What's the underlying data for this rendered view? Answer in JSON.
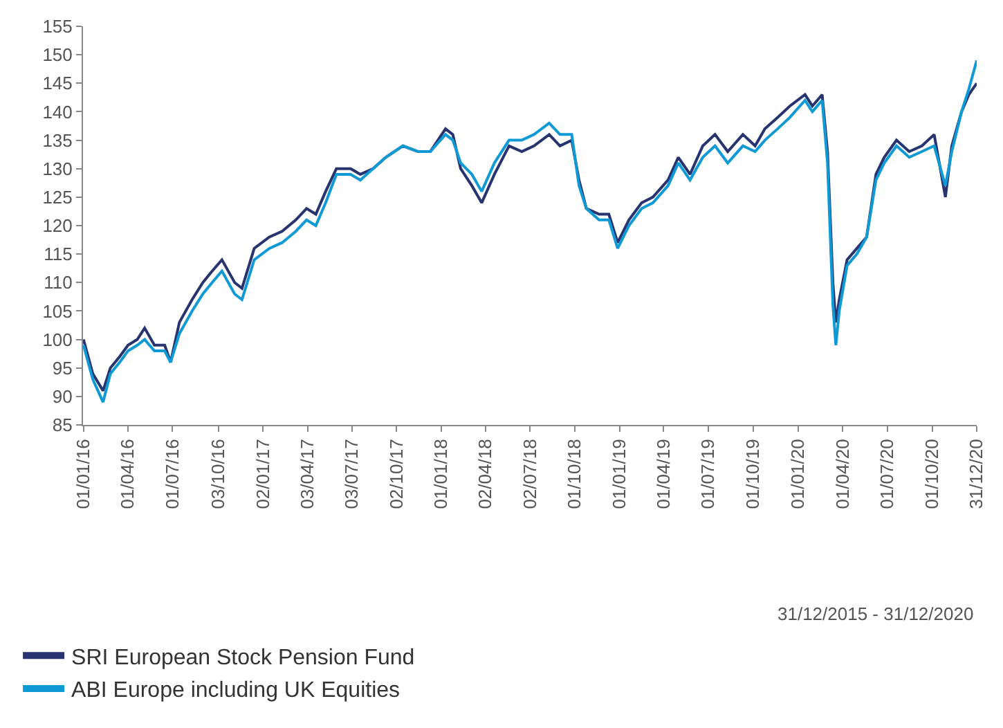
{
  "chart_data": {
    "type": "line",
    "annotations": [
      "31/12/2015 - 31/12/2020"
    ],
    "xlim": [
      "2015-12-31",
      "2020-12-31"
    ],
    "xticks": [
      {
        "value": "2016-01-01",
        "label": "01/01/16"
      },
      {
        "value": "2016-04-01",
        "label": "01/04/16"
      },
      {
        "value": "2016-07-01",
        "label": "01/07/16"
      },
      {
        "value": "2016-10-03",
        "label": "03/10/16"
      },
      {
        "value": "2017-01-02",
        "label": "02/01/17"
      },
      {
        "value": "2017-04-03",
        "label": "03/04/17"
      },
      {
        "value": "2017-07-03",
        "label": "03/07/17"
      },
      {
        "value": "2017-10-02",
        "label": "02/10/17"
      },
      {
        "value": "2018-01-01",
        "label": "01/01/18"
      },
      {
        "value": "2018-04-02",
        "label": "02/04/18"
      },
      {
        "value": "2018-07-02",
        "label": "02/07/18"
      },
      {
        "value": "2018-10-01",
        "label": "01/10/18"
      },
      {
        "value": "2019-01-01",
        "label": "01/01/19"
      },
      {
        "value": "2019-04-01",
        "label": "01/04/19"
      },
      {
        "value": "2019-07-01",
        "label": "01/07/19"
      },
      {
        "value": "2019-10-01",
        "label": "01/10/19"
      },
      {
        "value": "2020-01-01",
        "label": "01/01/20"
      },
      {
        "value": "2020-04-01",
        "label": "01/04/20"
      },
      {
        "value": "2020-07-01",
        "label": "01/07/20"
      },
      {
        "value": "2020-10-01",
        "label": "01/10/20"
      },
      {
        "value": "2020-12-31",
        "label": "31/12/20"
      }
    ],
    "ylim": [
      85,
      155
    ],
    "yticks": [
      85,
      90,
      95,
      100,
      105,
      110,
      115,
      120,
      125,
      130,
      135,
      140,
      145,
      150,
      155
    ],
    "grid": false,
    "legend": "bottom left",
    "line_style": "solid",
    "x": [
      "2016-01-01",
      "2016-01-20",
      "2016-02-10",
      "2016-02-25",
      "2016-03-15",
      "2016-04-01",
      "2016-04-20",
      "2016-05-05",
      "2016-05-25",
      "2016-06-15",
      "2016-06-27",
      "2016-07-15",
      "2016-08-10",
      "2016-09-01",
      "2016-09-20",
      "2016-10-10",
      "2016-11-05",
      "2016-11-20",
      "2016-12-15",
      "2017-01-15",
      "2017-02-10",
      "2017-03-10",
      "2017-04-01",
      "2017-04-20",
      "2017-05-10",
      "2017-06-01",
      "2017-06-30",
      "2017-07-20",
      "2017-08-15",
      "2017-09-10",
      "2017-10-15",
      "2017-11-15",
      "2017-12-10",
      "2018-01-10",
      "2018-01-25",
      "2018-02-10",
      "2018-03-05",
      "2018-03-25",
      "2018-04-20",
      "2018-05-20",
      "2018-06-15",
      "2018-07-10",
      "2018-08-10",
      "2018-09-01",
      "2018-09-25",
      "2018-10-10",
      "2018-10-25",
      "2018-11-20",
      "2018-12-10",
      "2018-12-28",
      "2019-01-20",
      "2019-02-15",
      "2019-03-10",
      "2019-04-10",
      "2019-05-01",
      "2019-05-25",
      "2019-06-20",
      "2019-07-15",
      "2019-08-10",
      "2019-09-10",
      "2019-10-05",
      "2019-10-25",
      "2019-11-20",
      "2019-12-15",
      "2020-01-15",
      "2020-01-30",
      "2020-02-19",
      "2020-03-01",
      "2020-03-12",
      "2020-03-18",
      "2020-03-25",
      "2020-04-10",
      "2020-04-30",
      "2020-05-20",
      "2020-06-08",
      "2020-06-25",
      "2020-07-20",
      "2020-08-15",
      "2020-09-10",
      "2020-10-05",
      "2020-10-28",
      "2020-11-10",
      "2020-11-30",
      "2020-12-15",
      "2020-12-31"
    ],
    "series": [
      {
        "name": "SRI European Stock Pension Fund",
        "color": "#273470",
        "values": [
          100,
          94,
          91,
          95,
          97,
          99,
          100,
          102,
          99,
          99,
          96,
          103,
          107,
          110,
          112,
          114,
          110,
          109,
          116,
          118,
          119,
          121,
          123,
          122,
          126,
          130,
          130,
          129,
          130,
          132,
          134,
          133,
          133,
          137,
          136,
          130,
          127,
          124,
          129,
          134,
          133,
          134,
          136,
          134,
          135,
          128,
          123,
          122,
          122,
          117,
          121,
          124,
          125,
          128,
          132,
          129,
          134,
          136,
          133,
          136,
          134,
          137,
          139,
          141,
          143,
          141,
          143,
          133,
          110,
          103,
          107,
          114,
          116,
          118,
          129,
          132,
          135,
          133,
          134,
          136,
          125,
          134,
          140,
          143,
          145
        ]
      },
      {
        "name": "ABI Europe including UK Equities",
        "color": "#0f9ad6",
        "values": [
          99,
          93,
          89,
          94,
          96,
          98,
          99,
          100,
          98,
          98,
          96,
          101,
          105,
          108,
          110,
          112,
          108,
          107,
          114,
          116,
          117,
          119,
          121,
          120,
          124,
          129,
          129,
          128,
          130,
          132,
          134,
          133,
          133,
          136,
          135,
          131,
          129,
          126,
          131,
          135,
          135,
          136,
          138,
          136,
          136,
          127,
          123,
          121,
          121,
          116,
          120,
          123,
          124,
          127,
          131,
          128,
          132,
          134,
          131,
          134,
          133,
          135,
          137,
          139,
          142,
          140,
          142,
          131,
          106,
          99,
          105,
          113,
          115,
          118,
          128,
          131,
          134,
          132,
          133,
          134,
          127,
          133,
          140,
          144,
          149
        ]
      }
    ]
  }
}
